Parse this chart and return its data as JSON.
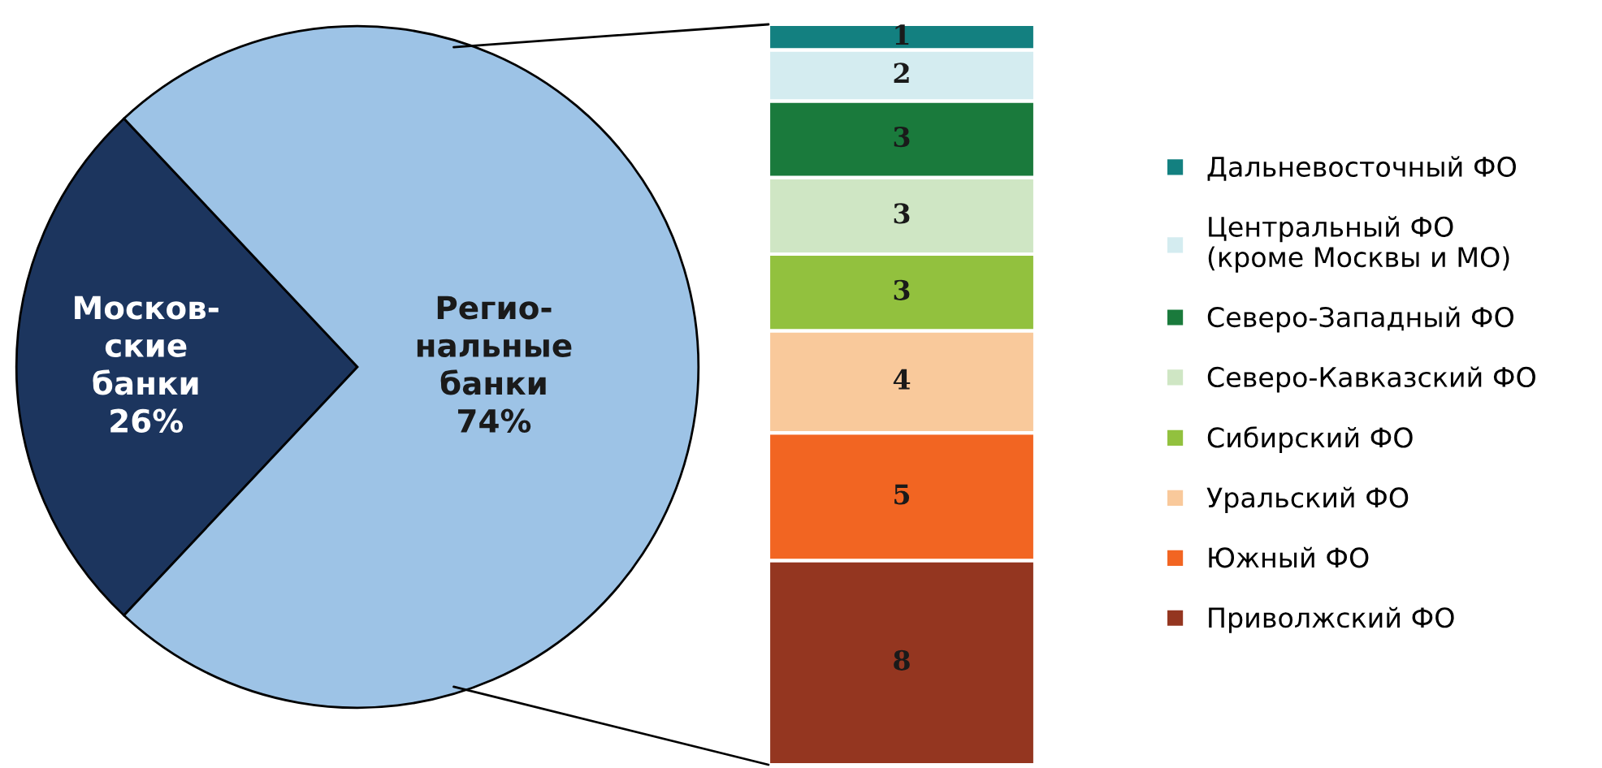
{
  "chart_data": [
    {
      "type": "pie",
      "categories": [
        "Москов-\nские\nбанки",
        "Регио-\nнальные\nбанки"
      ],
      "values": [
        26,
        74
      ],
      "colors": [
        "#1c355e",
        "#9dc3e6"
      ],
      "value_labels": [
        "26%",
        "74%"
      ],
      "legend": false
    },
    {
      "type": "bar",
      "stacked": true,
      "categories": [
        null
      ],
      "data_labels": true,
      "legend": "right",
      "series": [
        {
          "name": "Приволжский ФО",
          "color": "#943620",
          "values": [
            8
          ]
        },
        {
          "name": "Южный ФО",
          "color": "#f26522",
          "values": [
            5
          ]
        },
        {
          "name": "Уральский ФО",
          "color": "#f9c99b",
          "values": [
            4
          ]
        },
        {
          "name": "Сибирский ФО",
          "color": "#92c13e",
          "values": [
            3
          ]
        },
        {
          "name": "Северо-Кавказский ФО",
          "color": "#cfe6c4",
          "values": [
            3
          ]
        },
        {
          "name": "Северо-Западный ФО",
          "color": "#1a7a3c",
          "values": [
            3
          ]
        },
        {
          "name": "Центральный ФО\n(кроме Москвы и МО)",
          "color": "#d4ecf0",
          "values": [
            2
          ]
        },
        {
          "name": "Дальневосточный ФО",
          "color": "#138080",
          "values": [
            1
          ]
        }
      ]
    }
  ]
}
